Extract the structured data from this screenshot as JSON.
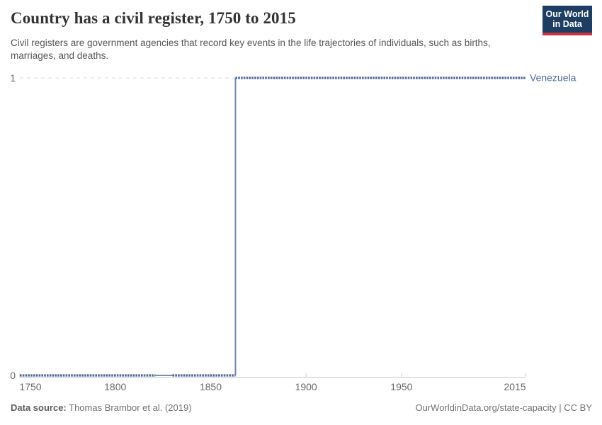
{
  "header": {
    "title": "Country has a civil register, 1750 to 2015",
    "subtitle": "Civil registers are government agencies that record key events in the life trajectories of individuals, such as births, marriages, and deaths."
  },
  "logo": {
    "line1": "Our World",
    "line2": "in Data",
    "bg_color": "#1d3d63",
    "accent_color": "#c9353c"
  },
  "footer": {
    "source_label": "Data source:",
    "source_text": "Thomas Brambor et al. (2019)",
    "credit": "OurWorldinData.org/state-capacity | CC BY"
  },
  "chart_data": {
    "type": "line",
    "title": "Country has a civil register, 1750 to 2015",
    "entity_label": "Venezuela",
    "x_range": [
      1750,
      2015
    ],
    "y_range": [
      0,
      1
    ],
    "x_ticks": [
      1750,
      1800,
      1850,
      1900,
      1950,
      2015
    ],
    "y_ticks": [
      0,
      1
    ],
    "grid": "dashed gridline at y=1 only, left of data line",
    "legend_position": "label at right end of line",
    "line_color": "#4C6A9C",
    "axis_color": "#cccccc",
    "grid_color": "#dedede",
    "tick_label_color": "#696969",
    "step_changes": [
      {
        "year": 1863,
        "from": 0,
        "to": 1
      }
    ],
    "series": [
      {
        "name": "Venezuela",
        "description": "Binary indicator: 0 from 1750 through 1862 (annual markers; plain interpolated line over 1821-1830 data gap), steps up to 1 in 1863 and stays 1 through 2015.",
        "segments": [
          {
            "from_year": 1750,
            "to_year": 1821,
            "value": 0,
            "style": "markers"
          },
          {
            "from_year": 1821,
            "to_year": 1830,
            "value": 0,
            "style": "plain"
          },
          {
            "from_year": 1830,
            "to_year": 1863,
            "value": 0,
            "style": "markers"
          },
          {
            "from_year": 1863,
            "to_year": 1863,
            "value_from": 0,
            "value_to": 1,
            "style": "step"
          },
          {
            "from_year": 1863,
            "to_year": 2015,
            "value": 1,
            "style": "markers"
          }
        ]
      }
    ]
  }
}
